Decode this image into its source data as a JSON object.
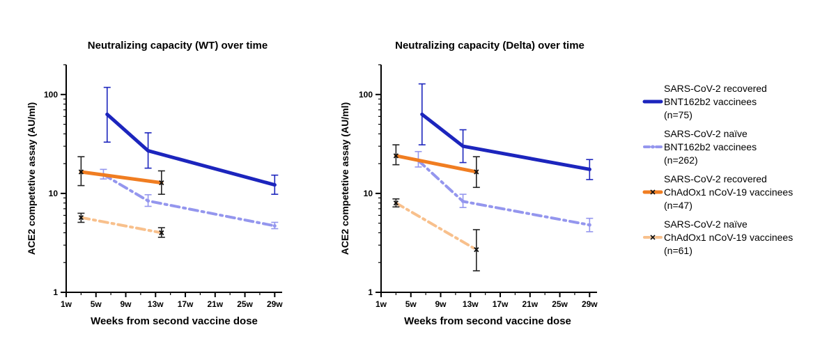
{
  "chart_data": [
    {
      "type": "line",
      "title": "Neutralizing capacity (WT) over time",
      "xlabel": "Weeks from second vaccine dose",
      "ylabel": "ACE2 competetive assay (AU/ml)",
      "yscale": "log",
      "xlim": [
        1,
        30
      ],
      "ylim": [
        1,
        200
      ],
      "xticks": [
        1,
        5,
        9,
        13,
        17,
        21,
        25,
        29
      ],
      "xtick_labels": [
        "1w",
        "5w",
        "9w",
        "13w",
        "17w",
        "21w",
        "25w",
        "29w"
      ],
      "yticks": [
        1,
        10,
        100
      ],
      "ytick_labels": [
        "1",
        "10",
        "100"
      ],
      "series": [
        {
          "name": "SARS-CoV-2 recovered BNT162b2 vaccinees (n=75)",
          "x": [
            6.5,
            12,
            29
          ],
          "y": [
            63,
            27,
            12.2
          ],
          "err_low": [
            33,
            18,
            9.8
          ],
          "err_high": [
            118,
            41,
            15.3
          ]
        },
        {
          "name": "SARS-CoV-2 naïve BNT162b2 vaccinees (n=262)",
          "x": [
            6,
            12,
            29
          ],
          "y": [
            15.5,
            8.4,
            4.7
          ],
          "err_low": [
            14,
            7.4,
            4.4
          ],
          "err_high": [
            17.5,
            9.7,
            5.1
          ]
        },
        {
          "name": "SARS-CoV-2 recovered ChAdOx1 nCoV-19 vaccinees (n=47)",
          "x": [
            3,
            13.8
          ],
          "y": [
            16.5,
            12.8
          ],
          "err_low": [
            12,
            9.8
          ],
          "err_high": [
            23.5,
            16.9
          ]
        },
        {
          "name": "SARS-CoV-2 naïve ChAdOx1 nCoV-19 vaccinees (n=61)",
          "x": [
            3,
            13.8
          ],
          "y": [
            5.7,
            4.0
          ],
          "err_low": [
            5.1,
            3.6
          ],
          "err_high": [
            6.3,
            4.5
          ]
        }
      ]
    },
    {
      "type": "line",
      "title": "Neutralizing capacity (Delta) over time",
      "xlabel": "Weeks from second vaccine dose",
      "ylabel": "ACE2 competetive assay (AU/ml)",
      "yscale": "log",
      "xlim": [
        1,
        30
      ],
      "ylim": [
        1,
        200
      ],
      "xticks": [
        1,
        5,
        9,
        13,
        17,
        21,
        25,
        29
      ],
      "xtick_labels": [
        "1w",
        "5w",
        "9w",
        "13w",
        "17w",
        "21w",
        "25w",
        "29w"
      ],
      "yticks": [
        1,
        10,
        100
      ],
      "ytick_labels": [
        "1",
        "10",
        "100"
      ],
      "series": [
        {
          "name": "SARS-CoV-2 recovered BNT162b2 vaccinees (n=75)",
          "x": [
            6.5,
            12,
            29
          ],
          "y": [
            63,
            30,
            17.5
          ],
          "err_low": [
            31,
            20.5,
            13.8
          ],
          "err_high": [
            128,
            44,
            22
          ]
        },
        {
          "name": "SARS-CoV-2 naïve BNT162b2 vaccinees (n=262)",
          "x": [
            6,
            12,
            29
          ],
          "y": [
            21.5,
            8.3,
            4.8
          ],
          "err_low": [
            18.5,
            7.2,
            4.1
          ],
          "err_high": [
            26.5,
            9.8,
            5.6
          ]
        },
        {
          "name": "SARS-CoV-2 recovered ChAdOx1 nCoV-19 vaccinees (n=47)",
          "x": [
            3,
            13.8
          ],
          "y": [
            24,
            16.5
          ],
          "err_low": [
            19.5,
            11.5
          ],
          "err_high": [
            31,
            23.5
          ]
        },
        {
          "name": "SARS-CoV-2 naïve ChAdOx1 nCoV-19 vaccinees (n=61)",
          "x": [
            3,
            13.8
          ],
          "y": [
            8.0,
            2.7
          ],
          "err_low": [
            7.3,
            1.65
          ],
          "err_high": [
            8.8,
            4.3
          ]
        }
      ]
    }
  ],
  "legend": {
    "placement": "right",
    "items": [
      {
        "lines": [
          "SARS-CoV-2 recovered",
          "BNT162b2 vaccinees",
          "(n=75)"
        ],
        "color": "#1c25bd",
        "dash": "solid",
        "width": 5
      },
      {
        "lines": [
          "SARS-CoV-2 naïve",
          "BNT162b2 vaccinees",
          "(n=262)"
        ],
        "color": "#9496ee",
        "dash": "dashdot",
        "width": 4
      },
      {
        "lines": [
          "SARS-CoV-2 recovered",
          "ChAdOx1 nCoV-19 vaccinees",
          "(n=47)"
        ],
        "color": "#f07d21",
        "dash": "solid",
        "width": 5
      },
      {
        "lines": [
          "SARS-CoV-2 naïve",
          "ChAdOx1 nCoV-19 vaccinees",
          "(n=61)"
        ],
        "color": "#f8c08c",
        "dash": "dashdot",
        "width": 4
      }
    ]
  }
}
